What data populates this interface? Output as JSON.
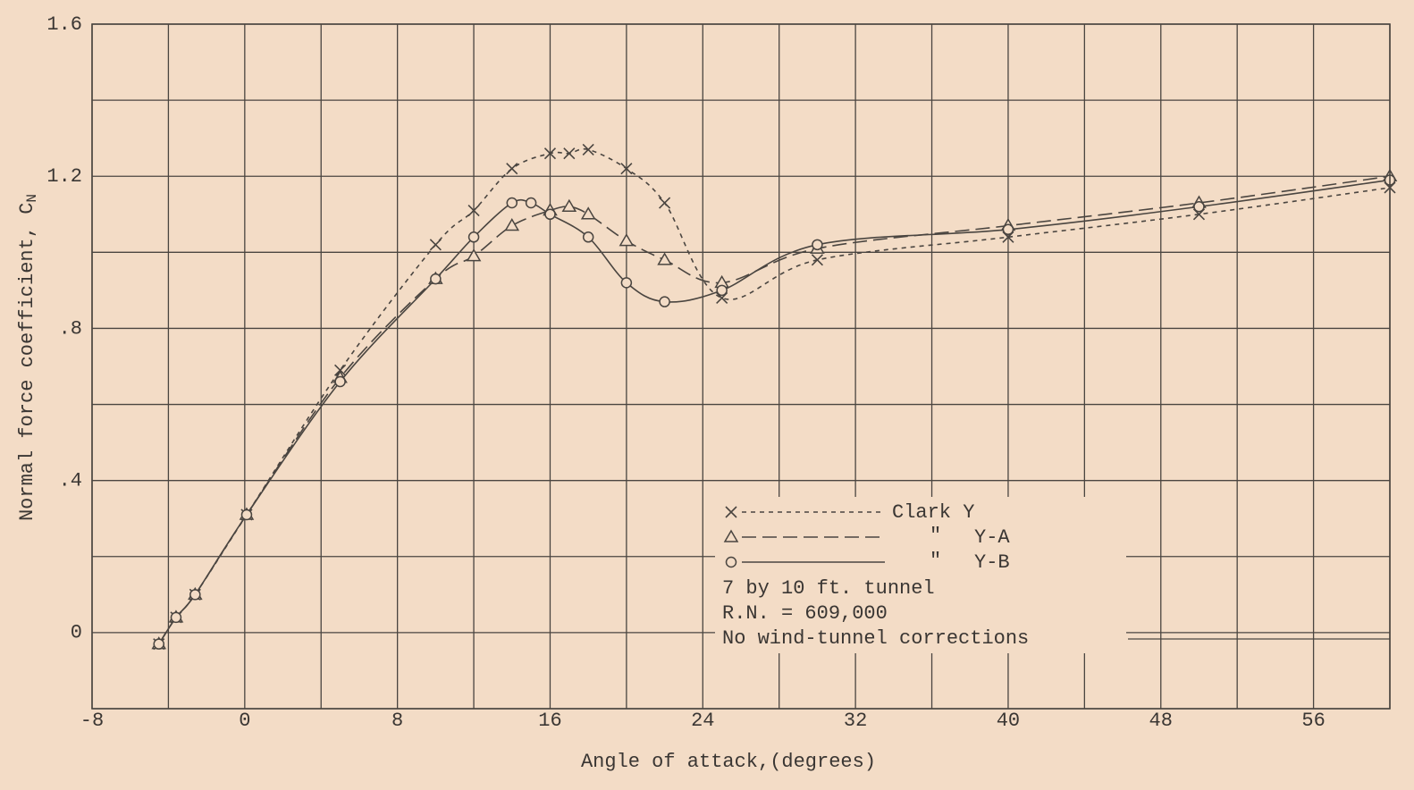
{
  "chart_data": {
    "type": "line",
    "xlabel": "Angle of attack,(degrees)",
    "ylabel": "Normal force coefficient, C",
    "ylabel_sub": "N",
    "xlim": [
      -8,
      60
    ],
    "ylim": [
      -0.2,
      1.6
    ],
    "xticks": [
      -8,
      0,
      8,
      16,
      24,
      32,
      40,
      48,
      56
    ],
    "yticks": [
      0,
      {
        "value": 0.4,
        "label": ".4"
      },
      {
        "value": 0.8,
        "label": ".8"
      },
      1.2,
      1.6
    ],
    "xgrid": [
      -8,
      -4,
      0,
      4,
      8,
      12,
      16,
      20,
      24,
      28,
      32,
      36,
      40,
      44,
      48,
      52,
      56,
      60
    ],
    "ygrid": [
      -0.2,
      0,
      0.2,
      0.4,
      0.6,
      0.8,
      1.0,
      1.2,
      1.4,
      1.6
    ],
    "grid": true,
    "legend_ditto": "\"",
    "annotations": [
      "7 by 10 ft. tunnel",
      "R.N. = 609,000",
      "No wind-tunnel corrections"
    ],
    "series": [
      {
        "name": "Clark Y",
        "color": "#4a4540",
        "marker": "x",
        "dash": "5 5",
        "x": [
          -4.5,
          -3.6,
          -2.6,
          0.1,
          5,
          10,
          12,
          14,
          16,
          17,
          18,
          20,
          22,
          25,
          30,
          40,
          50,
          60
        ],
        "values": [
          -0.03,
          0.04,
          0.1,
          0.31,
          0.69,
          1.02,
          1.11,
          1.22,
          1.26,
          1.26,
          1.27,
          1.22,
          1.13,
          0.88,
          0.98,
          1.04,
          1.1,
          1.17
        ]
      },
      {
        "name": "Y-A",
        "color": "#4a4540",
        "marker": "triangle",
        "dash": "16 7",
        "x": [
          -4.5,
          -3.6,
          -2.6,
          0.1,
          5,
          10,
          12,
          14,
          16,
          17,
          18,
          20,
          22,
          25,
          30,
          40,
          50,
          60
        ],
        "values": [
          -0.03,
          0.04,
          0.1,
          0.31,
          0.67,
          0.93,
          0.99,
          1.07,
          1.11,
          1.12,
          1.1,
          1.03,
          0.98,
          0.92,
          1.01,
          1.07,
          1.13,
          1.2
        ]
      },
      {
        "name": "Y-B",
        "color": "#4a4540",
        "marker": "circle",
        "dash": "none",
        "x": [
          -4.5,
          -3.6,
          -2.6,
          0.1,
          5,
          10,
          12,
          14,
          15,
          16,
          18,
          20,
          22,
          25,
          30,
          40,
          50,
          60
        ],
        "values": [
          -0.03,
          0.04,
          0.1,
          0.31,
          0.66,
          0.93,
          1.04,
          1.13,
          1.13,
          1.1,
          1.04,
          0.92,
          0.87,
          0.9,
          1.02,
          1.06,
          1.12,
          1.19
        ]
      }
    ]
  }
}
